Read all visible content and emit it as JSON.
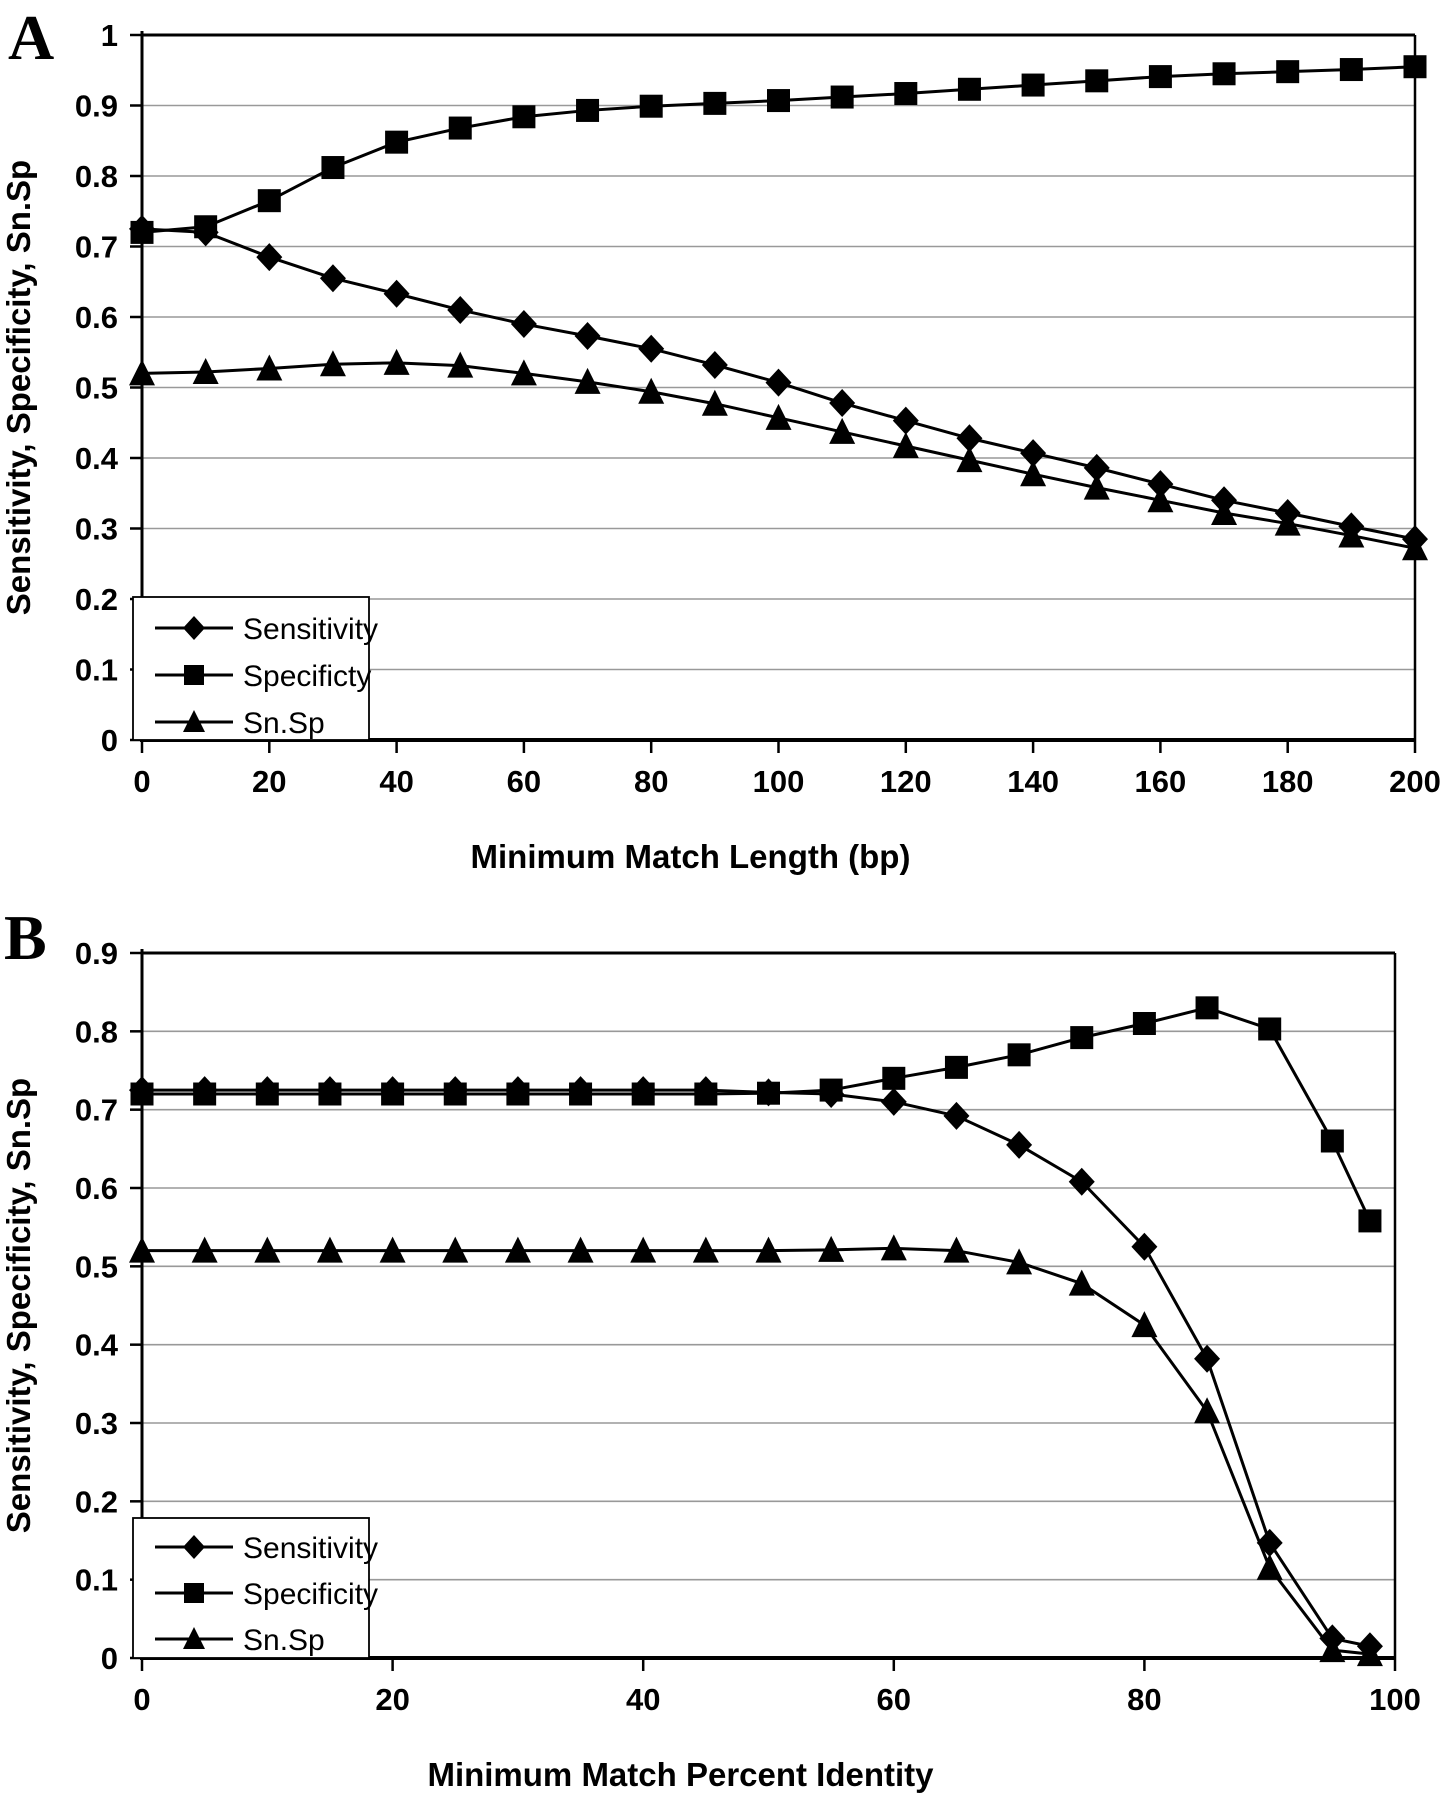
{
  "figure": {
    "background": "#ffffff",
    "ink_color": "#000000",
    "gridline_color": "#999999"
  },
  "panel_a_letter": "A",
  "panel_b_letter": "B",
  "chart_data": [
    {
      "type": "line",
      "panel_label": "A",
      "xlabel": "Minimum Match Length (bp)",
      "ylabel": "Sensitivity, Specificity, Sn.Sp",
      "xlim": [
        0,
        200
      ],
      "ylim": [
        0,
        1
      ],
      "xticks": [
        0,
        20,
        40,
        60,
        80,
        100,
        120,
        140,
        160,
        180,
        200
      ],
      "yticks": [
        "0",
        "0.1",
        "0.2",
        "0.3",
        "0.4",
        "0.5",
        "0.6",
        "0.7",
        "0.8",
        "0.9",
        "1"
      ],
      "grid": "horizontal",
      "legend_position": "lower-left-inside",
      "x": [
        0,
        10,
        20,
        30,
        40,
        50,
        60,
        70,
        80,
        90,
        100,
        110,
        120,
        130,
        140,
        150,
        160,
        170,
        180,
        190,
        200
      ],
      "series": [
        {
          "name": "Sensitivity",
          "marker": "diamond",
          "values": [
            0.725,
            0.72,
            0.685,
            0.655,
            0.633,
            0.61,
            0.59,
            0.573,
            0.555,
            0.532,
            0.507,
            0.478,
            0.453,
            0.428,
            0.407,
            0.386,
            0.363,
            0.34,
            0.322,
            0.303,
            0.285
          ]
        },
        {
          "name": "Specificty",
          "marker": "square",
          "values": [
            0.72,
            0.728,
            0.765,
            0.812,
            0.848,
            0.868,
            0.884,
            0.893,
            0.899,
            0.903,
            0.907,
            0.912,
            0.917,
            0.923,
            0.929,
            0.935,
            0.941,
            0.945,
            0.948,
            0.951,
            0.955
          ]
        },
        {
          "name": "Sn.Sp",
          "marker": "triangle",
          "values": [
            0.52,
            0.522,
            0.527,
            0.533,
            0.535,
            0.531,
            0.52,
            0.508,
            0.494,
            0.477,
            0.457,
            0.437,
            0.417,
            0.397,
            0.377,
            0.358,
            0.34,
            0.322,
            0.307,
            0.29,
            0.272
          ]
        }
      ]
    },
    {
      "type": "line",
      "panel_label": "B",
      "xlabel": "Minimum Match Percent Identity",
      "ylabel": "Sensitivity, Specificity, Sn.Sp",
      "xlim": [
        0,
        100
      ],
      "ylim": [
        0,
        0.9
      ],
      "xticks": [
        0,
        20,
        40,
        60,
        80,
        100
      ],
      "yticks": [
        "0",
        "0.1",
        "0.2",
        "0.3",
        "0.4",
        "0.5",
        "0.6",
        "0.7",
        "0.8",
        "0.9"
      ],
      "grid": "horizontal",
      "legend_position": "lower-left-inside",
      "x": [
        0,
        5,
        10,
        15,
        20,
        25,
        30,
        35,
        40,
        45,
        50,
        55,
        60,
        65,
        70,
        75,
        80,
        85,
        90,
        95,
        98
      ],
      "series": [
        {
          "name": "Sensitivity",
          "marker": "diamond",
          "values": [
            0.725,
            0.725,
            0.725,
            0.725,
            0.725,
            0.725,
            0.725,
            0.725,
            0.725,
            0.725,
            0.722,
            0.72,
            0.71,
            0.692,
            0.655,
            0.608,
            0.525,
            0.382,
            0.147,
            0.025,
            0.015
          ]
        },
        {
          "name": "Specificity",
          "marker": "square",
          "values": [
            0.72,
            0.72,
            0.72,
            0.72,
            0.72,
            0.72,
            0.72,
            0.72,
            0.72,
            0.72,
            0.721,
            0.725,
            0.74,
            0.754,
            0.77,
            0.792,
            0.81,
            0.83,
            0.803,
            0.66,
            0.558
          ]
        },
        {
          "name": "Sn.Sp",
          "marker": "triangle",
          "values": [
            0.52,
            0.52,
            0.52,
            0.52,
            0.52,
            0.52,
            0.52,
            0.52,
            0.52,
            0.52,
            0.52,
            0.521,
            0.523,
            0.52,
            0.505,
            0.478,
            0.425,
            0.315,
            0.115,
            0.01,
            0.005
          ]
        }
      ]
    }
  ]
}
